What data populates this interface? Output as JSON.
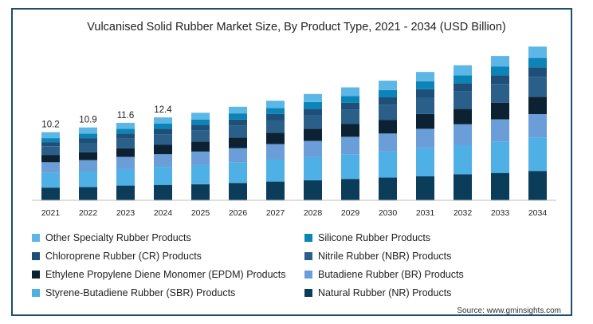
{
  "chart_data": {
    "type": "bar",
    "stacked": true,
    "title": "Vulcanised Solid Rubber Market Size, By Product Type, 2021 - 2034 (USD Billion)",
    "categories": [
      "2021",
      "2022",
      "2023",
      "2024",
      "2025",
      "2026",
      "2027",
      "2028",
      "2029",
      "2030",
      "2031",
      "2032",
      "2033",
      "2034"
    ],
    "totals_labels": [
      "10.2",
      "10.9",
      "11.6",
      "12.4",
      "",
      "",
      "",
      "",
      "",
      "",
      "",
      "",
      "",
      ""
    ],
    "series": [
      {
        "name": "Natural Rubber (NR) Products",
        "color": "#0b3d5a",
        "values": [
          1.9,
          2.0,
          2.2,
          2.3,
          2.4,
          2.6,
          2.8,
          3.0,
          3.2,
          3.4,
          3.6,
          3.9,
          4.1,
          4.4
        ]
      },
      {
        "name": "Styrene-Butadiene Rubber (SBR) Products",
        "color": "#4fb0e6",
        "values": [
          2.2,
          2.3,
          2.5,
          2.7,
          2.9,
          3.1,
          3.3,
          3.5,
          3.7,
          3.9,
          4.2,
          4.4,
          4.7,
          5.0
        ]
      },
      {
        "name": "Butadiene Rubber (BR) Products",
        "color": "#6b9ed8",
        "values": [
          1.6,
          1.7,
          1.8,
          1.9,
          2.0,
          2.1,
          2.3,
          2.4,
          2.6,
          2.7,
          2.9,
          3.1,
          3.3,
          3.5
        ]
      },
      {
        "name": "Ethylene Propylene Diene Monomer (EPDM) Products",
        "color": "#0c2233",
        "values": [
          1.1,
          1.2,
          1.3,
          1.4,
          1.5,
          1.6,
          1.7,
          1.8,
          1.9,
          2.0,
          2.2,
          2.3,
          2.5,
          2.6
        ]
      },
      {
        "name": "Nitrile Rubber (NBR) Products",
        "color": "#2a5f8a",
        "values": [
          1.3,
          1.4,
          1.5,
          1.6,
          1.7,
          1.8,
          1.9,
          2.0,
          2.2,
          2.3,
          2.5,
          2.6,
          2.8,
          3.0
        ]
      },
      {
        "name": "Chloroprene Rubber (CR) Products",
        "color": "#1e4f79",
        "values": [
          0.6,
          0.7,
          0.7,
          0.8,
          0.8,
          0.9,
          0.9,
          1.0,
          1.0,
          1.1,
          1.2,
          1.2,
          1.3,
          1.4
        ]
      },
      {
        "name": "Silicone Rubber Products",
        "color": "#0b84b8",
        "values": [
          0.6,
          0.7,
          0.7,
          0.8,
          0.8,
          0.9,
          0.9,
          1.0,
          1.0,
          1.1,
          1.2,
          1.2,
          1.3,
          1.4
        ]
      },
      {
        "name": "Other Specialty Rubber Products",
        "color": "#5cb6e6",
        "values": [
          0.9,
          0.9,
          0.9,
          0.9,
          1.0,
          1.0,
          1.1,
          1.2,
          1.3,
          1.4,
          1.4,
          1.5,
          1.6,
          1.7
        ]
      }
    ],
    "xlabel": "",
    "ylabel": "",
    "ylim": [
      0,
      24
    ],
    "grid": false,
    "legend_position": "bottom"
  },
  "legend": {
    "left_column": [
      "Other Specialty Rubber Products",
      "Chloroprene Rubber (CR) Products",
      "Ethylene Propylene Diene Monomer (EPDM) Products",
      "Styrene-Butadiene Rubber (SBR) Products"
    ],
    "right_column": [
      "Silicone Rubber Products",
      "Nitrile Rubber (NBR) Products",
      "Butadiene Rubber (BR) Products",
      "Natural Rubber (NR) Products"
    ],
    "left_colors": [
      "#5cb6e6",
      "#1e4f79",
      "#0c2233",
      "#4fb0e6"
    ],
    "right_colors": [
      "#0b84b8",
      "#2a5f8a",
      "#6b9ed8",
      "#0b3d5a"
    ]
  },
  "source": "Source: www.gminsights.com"
}
